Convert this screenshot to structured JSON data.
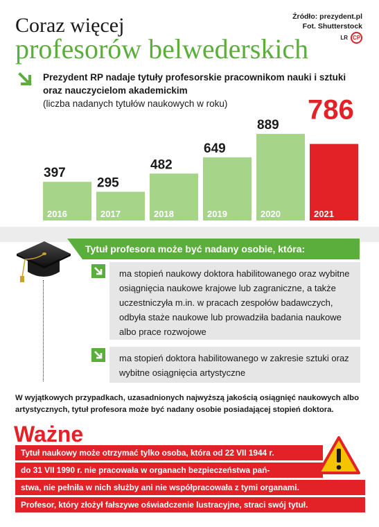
{
  "header": {
    "title_line1": "Coraz więcej",
    "title_line2": "profesorów belwederskich",
    "source": "Źródło: prezydent.pl",
    "photo": "Fot. Shutterstock",
    "author": "LR",
    "logo_text": "CP"
  },
  "intro": {
    "text": "Prezydent RP nadaje tytuły profesorskie pracownikom nauki i sztuki oraz nauczycielom akademickim",
    "subtext": "(liczba nadanych tytułów naukowych w roku)"
  },
  "chart_data": {
    "type": "bar",
    "categories": [
      "2016",
      "2017",
      "2018",
      "2019",
      "2020",
      "2021"
    ],
    "values": [
      397,
      295,
      482,
      649,
      889,
      786
    ],
    "title": "",
    "xlabel": "",
    "ylabel": "",
    "ylim": [
      0,
      900
    ],
    "grid": false,
    "colors": {
      "default": "#a6d489",
      "highlight": "#e32228",
      "year_label": "#ffffff",
      "value_label": "#1a1a1a",
      "highlight_value_label": "#e32228"
    },
    "highlight_category": "2021"
  },
  "conditions": {
    "heading": "Tytuł profesora może być nadany osobie, która:",
    "items": [
      "ma stopień naukowy doktora habilitowanego oraz wybitne osiągnięcia naukowe krajowe lub zagraniczne, a także uczestniczyła m.in. w pracach zespołów badawczych, odbyła staże naukowe lub prowadziła badania naukowe albo prace rozwojowe",
      "ma stopień doktora habilitowanego w zakresie sztuki oraz wybitne osiągnięcia artystyczne"
    ]
  },
  "note": "W wyjątkowych przypadkach, uzasadnionych najwyższą jakością osiągnięć naukowych albo artystycznych, tytuł profesora może być nadany osobie posiadającej stopień doktora.",
  "important": {
    "heading": "Ważne",
    "lines": [
      "Tytuł naukowy może otrzymać tylko osoba, która od 22 VII 1944 r.",
      "do 31 VII 1990 r. nie pracowała w organach bezpieczeństwa pań-",
      "stwa, nie pełniła w nich służby ani nie współpracowała z tymi organami.",
      "Profesor, który złożył fałszywe oświadczenie lustracyjne, straci swój tytuł."
    ]
  },
  "icons": {
    "intro_arrow": "arrow-down-right-icon",
    "graduation_cap": "graduation-cap-icon",
    "item_arrow": "arrow-down-right-icon",
    "warning": "warning-icon"
  },
  "colors": {
    "green": "#5cae3c",
    "light_green": "#a6d489",
    "red": "#e32228",
    "grey_box": "#e6e6e6"
  }
}
